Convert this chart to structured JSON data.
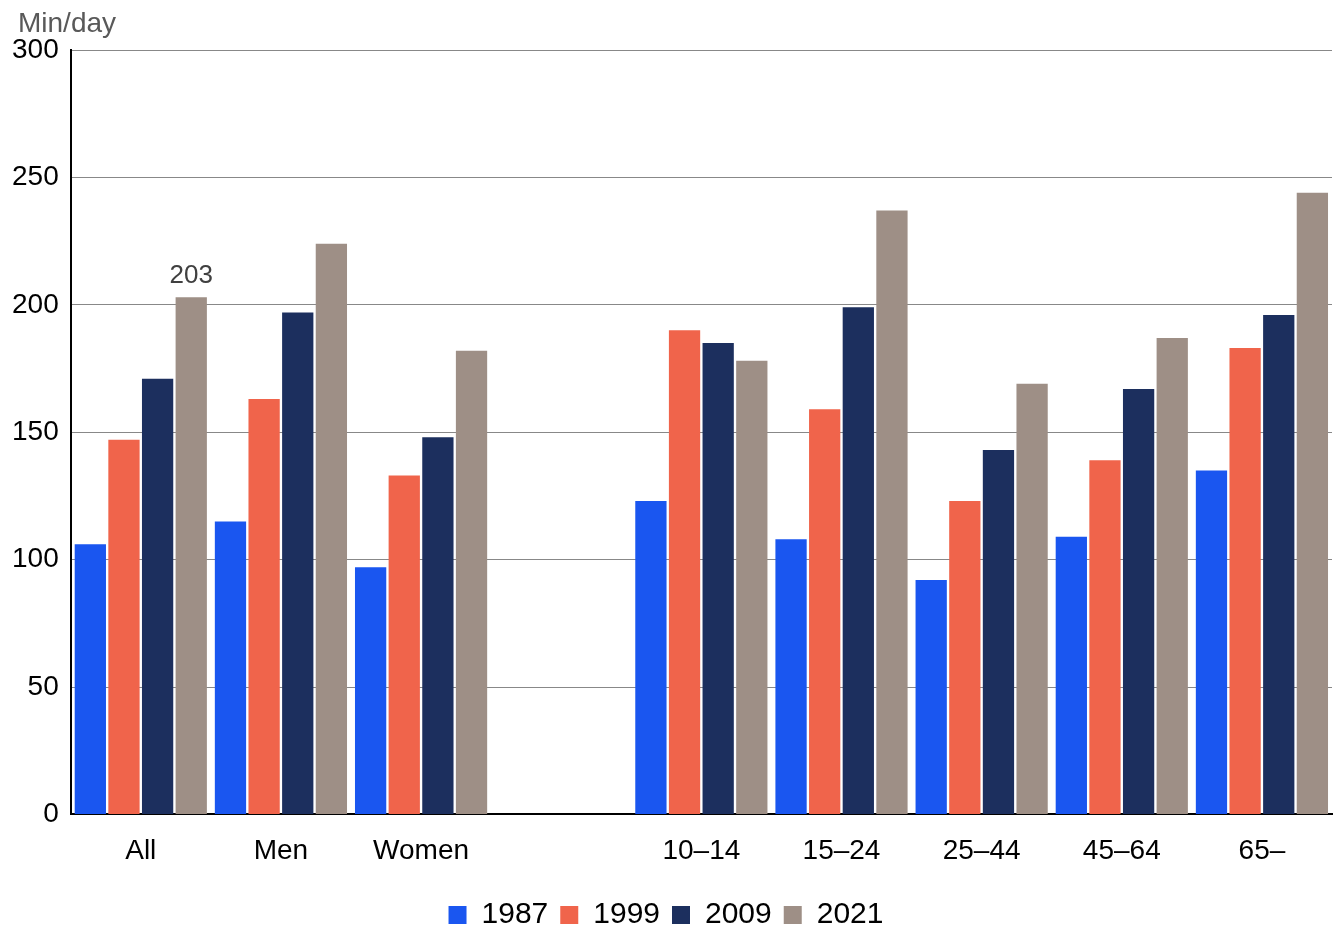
{
  "chart_data": {
    "type": "bar",
    "ylabel": "Min/day",
    "categories": [
      "All",
      "Men",
      "Women",
      null,
      "10–14",
      "15–24",
      "25–44",
      "45–64",
      "65–"
    ],
    "series": [
      {
        "name": "1987",
        "color": "#1a56f0",
        "values": [
          106,
          115,
          97,
          null,
          123,
          108,
          92,
          109,
          135
        ]
      },
      {
        "name": "1999",
        "color": "#f0644b",
        "values": [
          147,
          163,
          133,
          null,
          190,
          159,
          123,
          139,
          183
        ]
      },
      {
        "name": "2009",
        "color": "#1c2f5e",
        "values": [
          171,
          197,
          148,
          null,
          185,
          199,
          143,
          167,
          196
        ]
      },
      {
        "name": "2021",
        "color": "#9e8f86",
        "values": [
          203,
          224,
          182,
          null,
          178,
          237,
          169,
          187,
          244
        ],
        "value_labels": [
          "203",
          null,
          null,
          null,
          null,
          null,
          null,
          null,
          null
        ]
      }
    ],
    "ylim": [
      0,
      300
    ],
    "yticks": [
      0,
      50,
      100,
      150,
      200,
      250,
      300
    ],
    "grid": "y",
    "legend": "bottom"
  }
}
